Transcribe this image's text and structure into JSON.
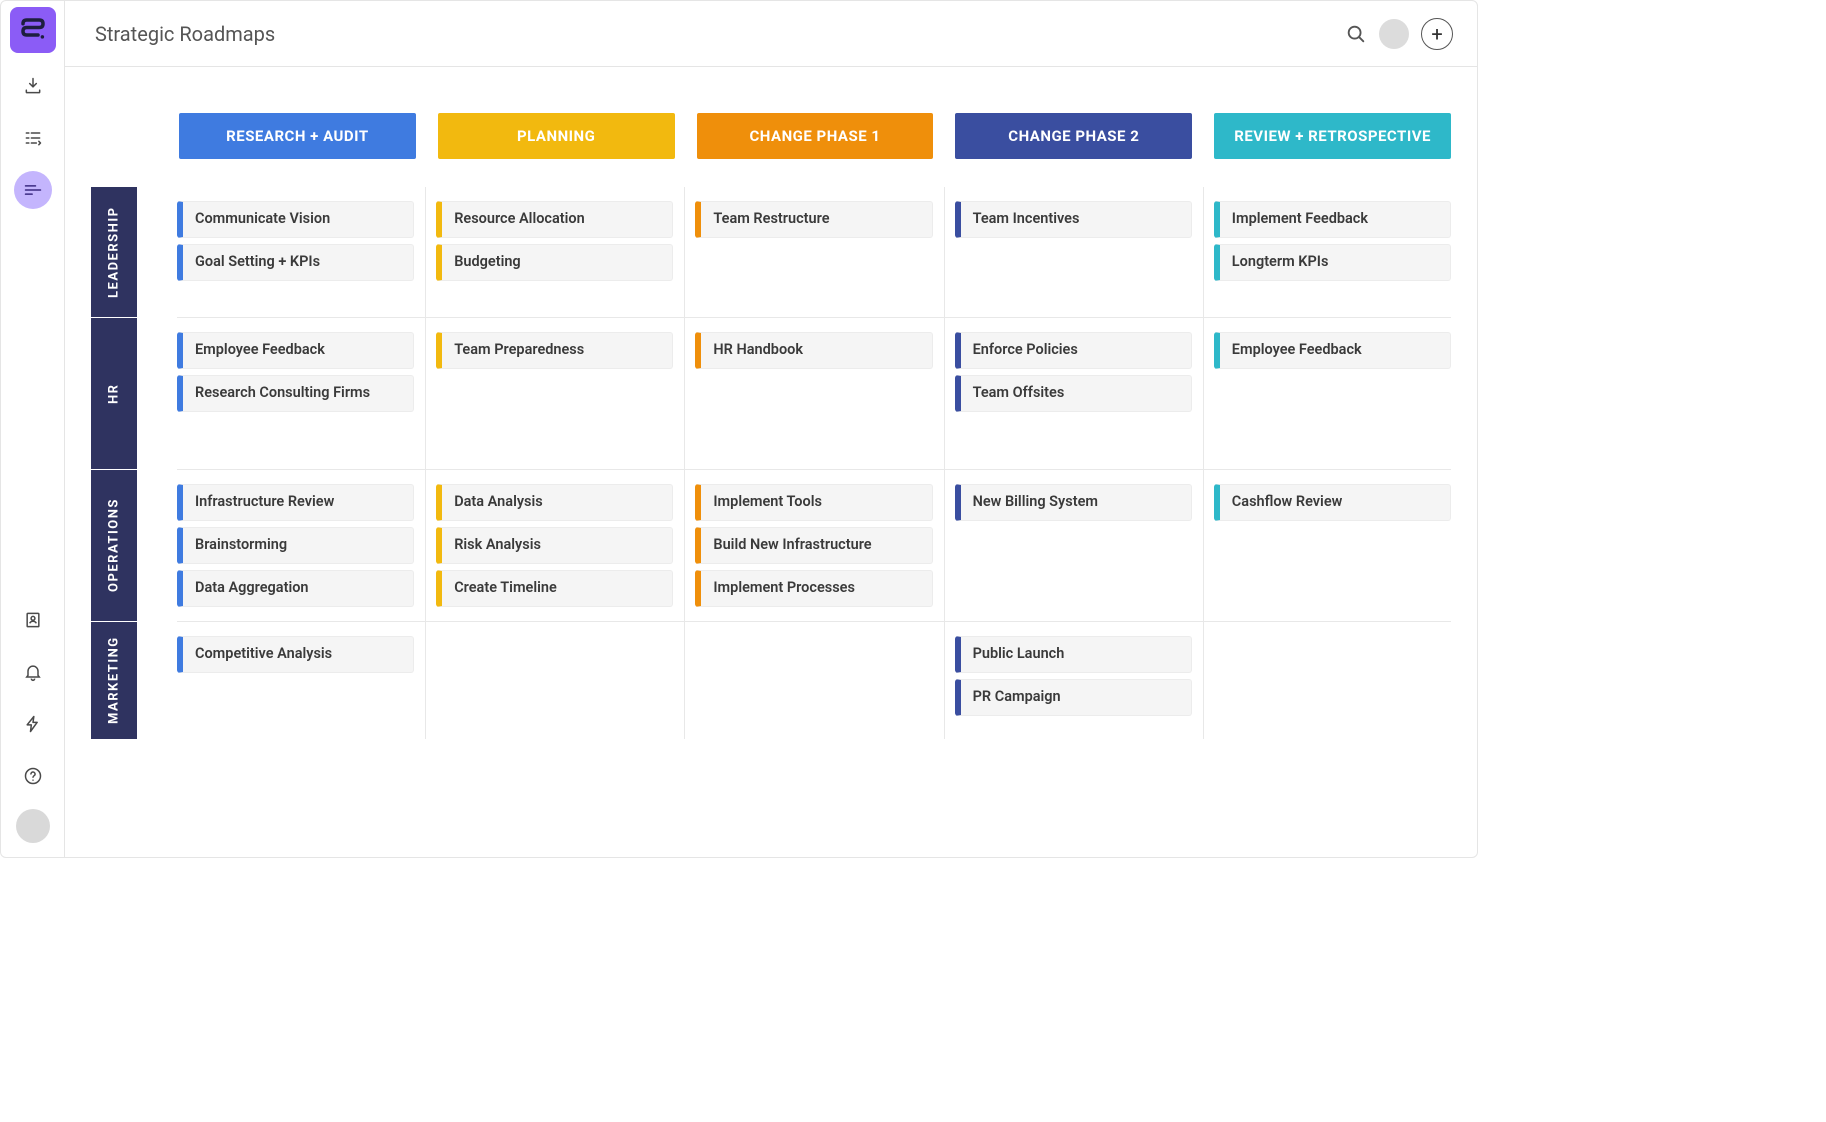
{
  "title": "Strategic Roadmaps",
  "colors": {
    "sidebar_logo_bg": "#8b5cf6",
    "sidebar_active_bg": "#c4b5fd",
    "row_label_bg": "#2f3360",
    "card_bg": "#f5f5f5",
    "divider": "#e8e8e8"
  },
  "phases": [
    {
      "id": "research",
      "label": "RESEARCH + AUDIT",
      "color": "#3f7be0"
    },
    {
      "id": "planning",
      "label": "PLANNING",
      "color": "#f2b90f"
    },
    {
      "id": "change1",
      "label": "CHANGE PHASE 1",
      "color": "#ef8f0b"
    },
    {
      "id": "change2",
      "label": "CHANGE PHASE 2",
      "color": "#3a4ea0"
    },
    {
      "id": "review",
      "label": "REVIEW + RETROSPECTIVE",
      "color": "#2eb8c9"
    }
  ],
  "swimlanes": [
    {
      "id": "leadership",
      "label": "LEADERSHIP",
      "cells": [
        [
          "Communicate Vision",
          "Goal Setting + KPIs"
        ],
        [
          "Resource Allocation",
          "Budgeting"
        ],
        [
          "Team Restructure"
        ],
        [
          "Team Incentives"
        ],
        [
          "Implement Feedback",
          "Longterm KPIs"
        ]
      ]
    },
    {
      "id": "hr",
      "label": "HR",
      "cells": [
        [
          "Employee Feedback",
          "Research Consulting Firms"
        ],
        [
          "Team Preparedness"
        ],
        [
          "HR Handbook"
        ],
        [
          "Enforce Policies",
          "Team Offsites"
        ],
        [
          "Employee Feedback"
        ]
      ]
    },
    {
      "id": "operations",
      "label": "OPERATIONS",
      "cells": [
        [
          "Infrastructure Review",
          "Brainstorming",
          "Data Aggregation"
        ],
        [
          "Data Analysis",
          "Risk Analysis",
          "Create Timeline"
        ],
        [
          "Implement Tools",
          "Build New Infrastructure",
          "Implement Processes"
        ],
        [
          "New Billing System"
        ],
        [
          "Cashflow Review"
        ]
      ]
    },
    {
      "id": "marketing",
      "label": "MARKETING",
      "cells": [
        [
          "Competitive Analysis"
        ],
        [],
        [],
        [
          "Public Launch",
          "PR Campaign"
        ],
        []
      ]
    }
  ]
}
